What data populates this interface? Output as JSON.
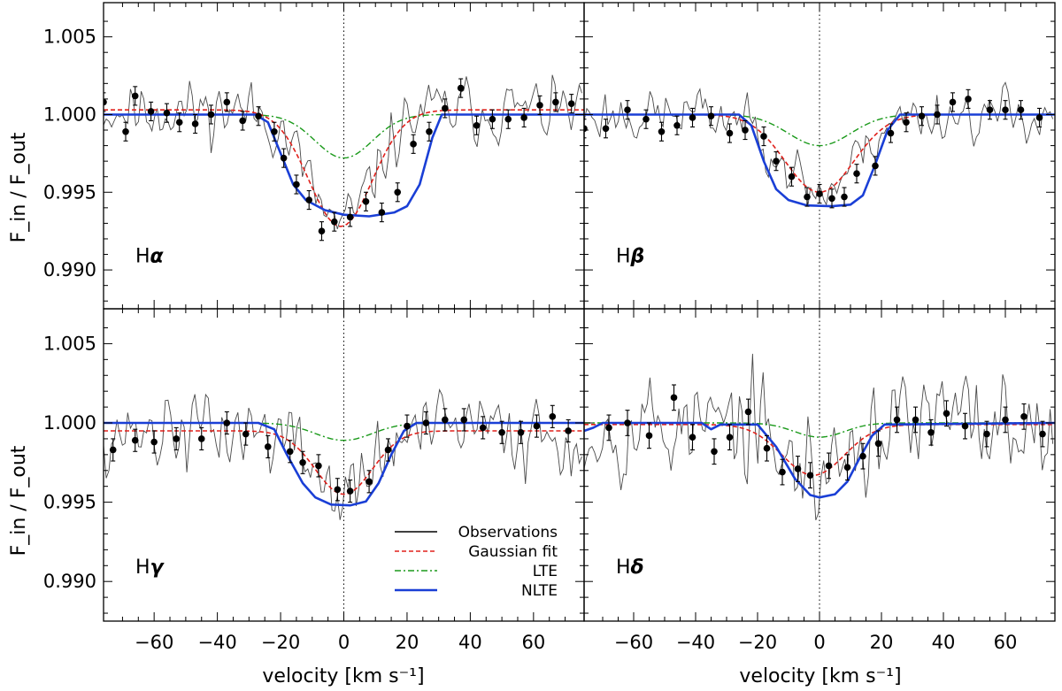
{
  "chart_data": {
    "type": "line",
    "xlabel": "velocity [km s⁻¹]",
    "ylabel": "F_in / F_out",
    "xlim": [
      -76,
      76
    ],
    "ylim": [
      0.9875,
      1.0072
    ],
    "x_ticks": [
      -60,
      -40,
      -20,
      0,
      20,
      40,
      60
    ],
    "y_ticks": [
      0.99,
      0.995,
      1.0,
      1.005
    ],
    "y_tick_labels": [
      "0.990",
      "0.995",
      "1.000",
      "1.005"
    ],
    "legend": {
      "placement": "bottom-right of lower-left panel",
      "entries": [
        {
          "name": "Observations",
          "color": "#000000",
          "style": "solid"
        },
        {
          "name": "Gaussian fit",
          "color": "#e0201b",
          "style": "dashed"
        },
        {
          "name": "LTE",
          "color": "#1b9a1b",
          "style": "dash-dot"
        },
        {
          "name": "NLTE",
          "color": "#1a3fd6",
          "style": "solid-thick"
        }
      ]
    },
    "panels": [
      {
        "line": "Hα",
        "line_letter": "H",
        "line_greek": "α",
        "gaussian": {
          "baseline": 1.0003,
          "depth": 0.0075,
          "center": -1,
          "sigma": 10
        },
        "lte": {
          "depth": 0.0028,
          "sigma": 9
        },
        "nlte": {
          "points": [
            [
              -76,
              1.0
            ],
            [
              -28,
              1.0
            ],
            [
              -24,
              0.9995
            ],
            [
              -20,
              0.9975
            ],
            [
              -16,
              0.9955
            ],
            [
              -12,
              0.9945
            ],
            [
              -6,
              0.99385
            ],
            [
              0,
              0.99355
            ],
            [
              8,
              0.99345
            ],
            [
              16,
              0.9937
            ],
            [
              20,
              0.9941
            ],
            [
              24,
              0.9955
            ],
            [
              28,
              0.9985
            ],
            [
              31,
              1.0
            ],
            [
              76,
              1.0
            ]
          ]
        },
        "binned": {
          "x": [
            -76,
            -69,
            -66,
            -61,
            -56,
            -52,
            -47,
            -42,
            -37,
            -32,
            -27,
            -22,
            -19,
            -15,
            -11,
            -7,
            -3,
            2,
            7,
            12,
            17,
            22,
            27,
            32,
            37,
            42,
            47,
            52,
            57,
            62,
            67,
            72
          ],
          "y": [
            1.0008,
            0.9989,
            1.0012,
            1.0002,
            1.0001,
            0.9995,
            0.9994,
            1.0,
            1.0008,
            0.9996,
            0.9999,
            0.9989,
            0.9972,
            0.9955,
            0.9945,
            0.9925,
            0.9931,
            0.9934,
            0.9944,
            0.9937,
            0.995,
            0.9981,
            0.9989,
            1.0004,
            1.0017,
            0.9993,
            0.9997,
            0.9997,
            0.9998,
            1.0006,
            1.0008,
            1.0007
          ],
          "err": 0.0006
        },
        "obs_noise": 0.0014,
        "obs_seed": 11
      },
      {
        "line": "Hβ",
        "line_letter": "H",
        "line_greek": "β",
        "gaussian": {
          "baseline": 1.0,
          "depth": 0.005,
          "center": 0,
          "sigma": 11
        },
        "lte": {
          "depth": 0.002,
          "sigma": 10
        },
        "nlte": {
          "points": [
            [
              -76,
              1.0
            ],
            [
              -26,
              1.0
            ],
            [
              -22,
              0.9993
            ],
            [
              -18,
              0.997
            ],
            [
              -14,
              0.9952
            ],
            [
              -10,
              0.9945
            ],
            [
              -4,
              0.99415
            ],
            [
              4,
              0.9941
            ],
            [
              10,
              0.9942
            ],
            [
              14,
              0.9948
            ],
            [
              18,
              0.9968
            ],
            [
              22,
              0.999
            ],
            [
              26,
              1.0
            ],
            [
              76,
              1.0
            ]
          ]
        },
        "binned": {
          "x": [
            -76,
            -69,
            -62,
            -56,
            -51,
            -46,
            -41,
            -35,
            -29,
            -24,
            -18,
            -14,
            -9,
            -4,
            0,
            4,
            8,
            12,
            18,
            23,
            28,
            33,
            38,
            43,
            48,
            55,
            60,
            65,
            71
          ],
          "y": [
            0.9991,
            0.9991,
            1.0003,
            0.9997,
            0.9989,
            0.9993,
            0.9998,
            0.9999,
            0.9988,
            0.999,
            0.9986,
            0.997,
            0.996,
            0.9947,
            0.9949,
            0.9946,
            0.9947,
            0.9962,
            0.9967,
            0.9988,
            0.9995,
            0.9999,
            1.0,
            1.0008,
            1.001,
            1.0003,
            1.0003,
            1.0003,
            0.9998
          ],
          "err": 0.0006
        },
        "obs_noise": 0.0012,
        "obs_seed": 23
      },
      {
        "line": "Hγ",
        "line_letter": "H",
        "line_greek": "γ",
        "gaussian": {
          "baseline": 0.9995,
          "depth": 0.004,
          "center": 0,
          "sigma": 9
        },
        "lte": {
          "depth": 0.0011,
          "sigma": 9
        },
        "nlte": {
          "points": [
            [
              -76,
              1.0
            ],
            [
              -27,
              1.0
            ],
            [
              -22,
              0.9996
            ],
            [
              -18,
              0.998
            ],
            [
              -13,
              0.9962
            ],
            [
              -9,
              0.9953
            ],
            [
              -4,
              0.99485
            ],
            [
              2,
              0.9948
            ],
            [
              7,
              0.99505
            ],
            [
              11,
              0.9962
            ],
            [
              15,
              0.998
            ],
            [
              19,
              0.9995
            ],
            [
              23,
              1.0
            ],
            [
              76,
              1.0
            ]
          ]
        },
        "binned": {
          "x": [
            -73,
            -66,
            -60,
            -53,
            -45,
            -37,
            -31,
            -24,
            -17,
            -13,
            -8,
            -2,
            2,
            8,
            14,
            20,
            26,
            32,
            38,
            44,
            50,
            56,
            61,
            66,
            71
          ],
          "y": [
            0.9983,
            0.9989,
            0.9988,
            0.999,
            0.999,
            1.0,
            0.9993,
            0.9985,
            0.9982,
            0.9975,
            0.9973,
            0.9958,
            0.9957,
            0.9963,
            0.9983,
            0.9998,
            1.0,
            1.0002,
            1.0002,
            0.9997,
            0.9994,
            0.9994,
            0.9998,
            1.0004,
            0.9995
          ],
          "err": 0.0007
        },
        "obs_noise": 0.0018,
        "obs_seed": 37
      },
      {
        "line": "Hδ",
        "line_letter": "H",
        "line_greek": "δ",
        "gaussian": {
          "baseline": 0.9999,
          "depth": 0.0032,
          "center": -2,
          "sigma": 10
        },
        "lte": {
          "depth": 0.0009,
          "sigma": 8
        },
        "nlte": {
          "points": [
            [
              -76,
              0.9995
            ],
            [
              -73,
              0.9997
            ],
            [
              -70,
              1.0
            ],
            [
              -38,
              1.0
            ],
            [
              -35,
              0.9996
            ],
            [
              -32,
              0.9999
            ],
            [
              -20,
              0.9999
            ],
            [
              -14,
              0.9985
            ],
            [
              -8,
              0.9965
            ],
            [
              -3,
              0.99545
            ],
            [
              0,
              0.9953
            ],
            [
              5,
              0.9955
            ],
            [
              9,
              0.9963
            ],
            [
              13,
              0.9978
            ],
            [
              17,
              0.9992
            ],
            [
              21,
              0.9999
            ],
            [
              76,
              1.0
            ]
          ]
        },
        "binned": {
          "x": [
            -68,
            -62,
            -55,
            -47,
            -41,
            -34,
            -29,
            -23,
            -17,
            -12,
            -7,
            -3,
            3,
            9,
            14,
            19,
            25,
            31,
            36,
            41,
            47,
            54,
            60,
            66,
            72
          ],
          "y": [
            0.9997,
            1.0,
            0.9992,
            1.0016,
            0.9991,
            0.9982,
            0.9991,
            1.0007,
            0.9984,
            0.9969,
            0.9971,
            0.9967,
            0.9973,
            0.9972,
            0.9979,
            0.9987,
            1.0002,
            1.0002,
            0.9994,
            1.0006,
            0.9998,
            0.9993,
            1.0002,
            1.0004,
            0.9993
          ],
          "err": 0.0008
        },
        "obs_noise": 0.0024,
        "obs_seed": 53
      }
    ],
    "zero_line": {
      "x": 0,
      "style": "dotted"
    }
  }
}
